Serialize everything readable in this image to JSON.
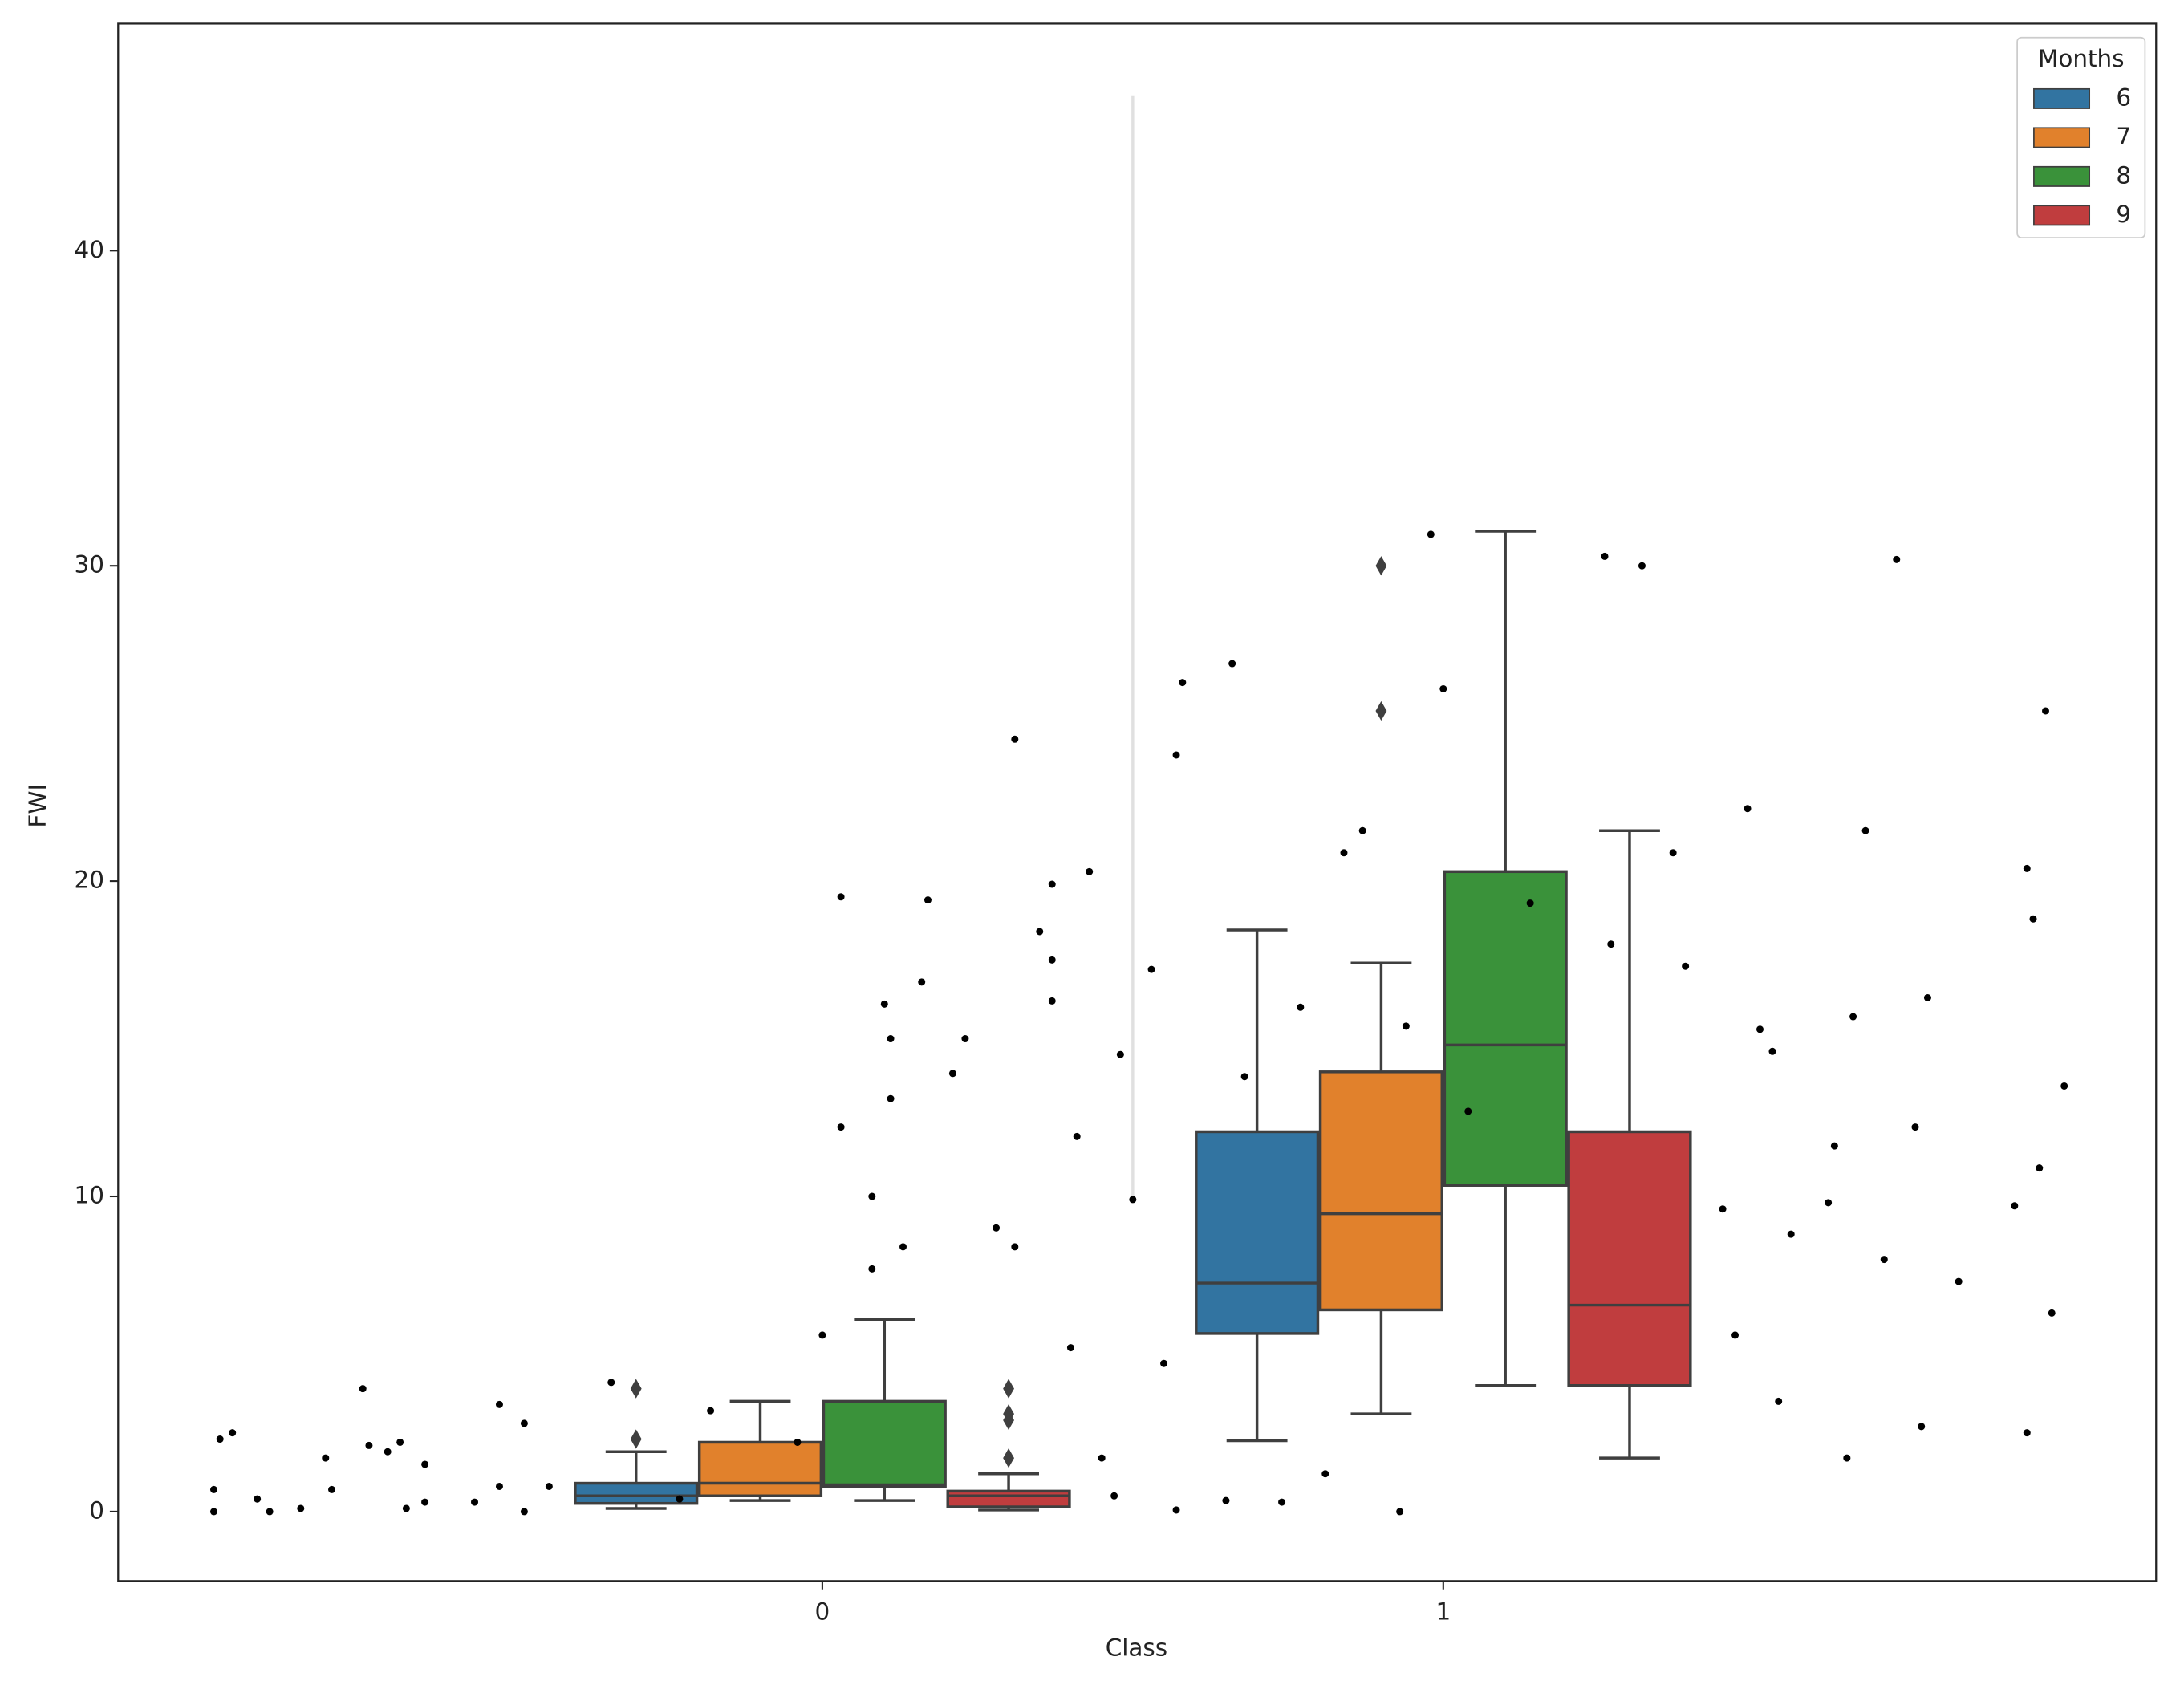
{
  "chart_data": {
    "type": "box",
    "x_label": "Class",
    "y_label": "FWI",
    "categories": [
      "0",
      "1"
    ],
    "xlim": [
      -1.134,
      2.148
    ],
    "ylim": [
      -2.2,
      47.2
    ],
    "yticks": [
      0,
      10,
      20,
      30,
      40
    ],
    "grid": false,
    "legend": {
      "title": "Months",
      "position": "upper-right"
    },
    "edge_color": "#3f3f3f",
    "series": [
      {
        "name": "6",
        "color": "#3274a1",
        "boxes": [
          {
            "whislo": 0.1,
            "q1": 0.26,
            "med": 0.5,
            "q3": 0.9,
            "whishi": 1.9,
            "fliers": [
              3.9,
              2.3
            ]
          },
          {
            "whislo": 2.25,
            "q1": 5.65,
            "med": 7.25,
            "q3": 12.05,
            "whishi": 18.45,
            "fliers": []
          }
        ]
      },
      {
        "name": "7",
        "color": "#e1812c",
        "boxes": [
          {
            "whislo": 0.35,
            "q1": 0.5,
            "med": 0.9,
            "q3": 2.2,
            "whishi": 3.5,
            "fliers": []
          },
          {
            "whislo": 3.1,
            "q1": 6.4,
            "med": 9.45,
            "q3": 13.95,
            "whishi": 17.4,
            "fliers": [
              25.4,
              30.0
            ]
          }
        ]
      },
      {
        "name": "8",
        "color": "#3a923a",
        "boxes": [
          {
            "whislo": 0.35,
            "q1": 0.8,
            "med": 0.85,
            "q3": 3.5,
            "whishi": 6.1,
            "fliers": []
          },
          {
            "whislo": 4.0,
            "q1": 10.35,
            "med": 14.8,
            "q3": 20.3,
            "whishi": 31.1,
            "fliers": []
          }
        ]
      },
      {
        "name": "9",
        "color": "#c03d3e",
        "boxes": [
          {
            "whislo": 0.05,
            "q1": 0.15,
            "med": 0.5,
            "q3": 0.65,
            "whishi": 1.2,
            "fliers": [
              3.9,
              3.1,
              2.9,
              1.7
            ]
          },
          {
            "whislo": 1.7,
            "q1": 4.0,
            "med": 6.55,
            "q3": 12.05,
            "whishi": 21.6,
            "fliers": []
          }
        ]
      }
    ],
    "ref_line": {
      "x": 0.5,
      "y": [
        10,
        44.9
      ],
      "color": "#e0e0e0"
    },
    "points": {
      "color": "#000000",
      "x": [
        -0.98,
        -0.98,
        -0.97,
        -0.95,
        -0.91,
        -0.89,
        -0.84,
        -0.8,
        -0.79,
        -0.74,
        -0.73,
        -0.7,
        -0.68,
        -0.67,
        -0.64,
        -0.64,
        -0.56,
        -0.52,
        -0.52,
        -0.48,
        -0.48,
        -0.44,
        -0.34,
        -0.23,
        -0.18,
        -0.04,
        0,
        0.03,
        0.03,
        0.08,
        0.08,
        0.1,
        0.11,
        0.11,
        0.13,
        0.16,
        0.17,
        0.21,
        0.23,
        0.28,
        0.31,
        0.31,
        0.35,
        0.37,
        0.37,
        0.37,
        0.4,
        0.41,
        0.43,
        0.45,
        0.48,
        0.5,
        0.53,
        0.55,
        0.57,
        0.58,
        0.66,
        0.68,
        0.77,
        0.81,
        0.84,
        0.87,
        0.94,
        0.98,
        1.0,
        1.04,
        1.14,
        1.26,
        1.32,
        1.27,
        1.37,
        1.39,
        1.49,
        1.51,
        1.53,
        1.56,
        1.54,
        1.62,
        1.63,
        1.65,
        1.66,
        1.68,
        1.71,
        1.73,
        1.76,
        1.77,
        1.78,
        1.83,
        1.92,
        1.94,
        1.94,
        1.95,
        1.96,
        1.97,
        1.98,
        2.0,
        1.45,
        1.47,
        0.93,
        0.74,
        0.65,
        0.57,
        0.47
      ],
      "y": [
        0.7,
        0,
        2.3,
        2.5,
        0.4,
        0,
        0.1,
        1.7,
        0.7,
        3.9,
        2.1,
        1.9,
        2.2,
        0.1,
        1.5,
        0.3,
        0.3,
        3.4,
        0.8,
        2.8,
        0,
        0.8,
        4.1,
        0.4,
        3.2,
        2.2,
        5.6,
        12.2,
        19.5,
        10.0,
        7.7,
        16.1,
        13.1,
        15.0,
        8.4,
        16.8,
        19.4,
        13.9,
        15.0,
        9.0,
        24.5,
        8.4,
        18.4,
        16.2,
        19.9,
        17.5,
        5.2,
        11.9,
        20.3,
        1.7,
        14.5,
        9.9,
        17.2,
        4.7,
        24.0,
        26.3,
        26.9,
        13.8,
        16.0,
        1.2,
        20.9,
        21.6,
        15.4,
        31.0,
        26.1,
        12.7,
        19.3,
        30.3,
        30.0,
        18.0,
        20.9,
        17.3,
        22.3,
        15.3,
        14.6,
        8.8,
        3.5,
        9.8,
        11.6,
        1.7,
        15.7,
        21.6,
        8.0,
        30.2,
        12.2,
        2.7,
        16.3,
        7.3,
        9.7,
        20.4,
        2.5,
        18.8,
        10.9,
        25.4,
        6.3,
        13.5,
        9.6,
        5.6,
        0,
        0.3,
        0.35,
        0.05,
        0.5
      ]
    }
  }
}
